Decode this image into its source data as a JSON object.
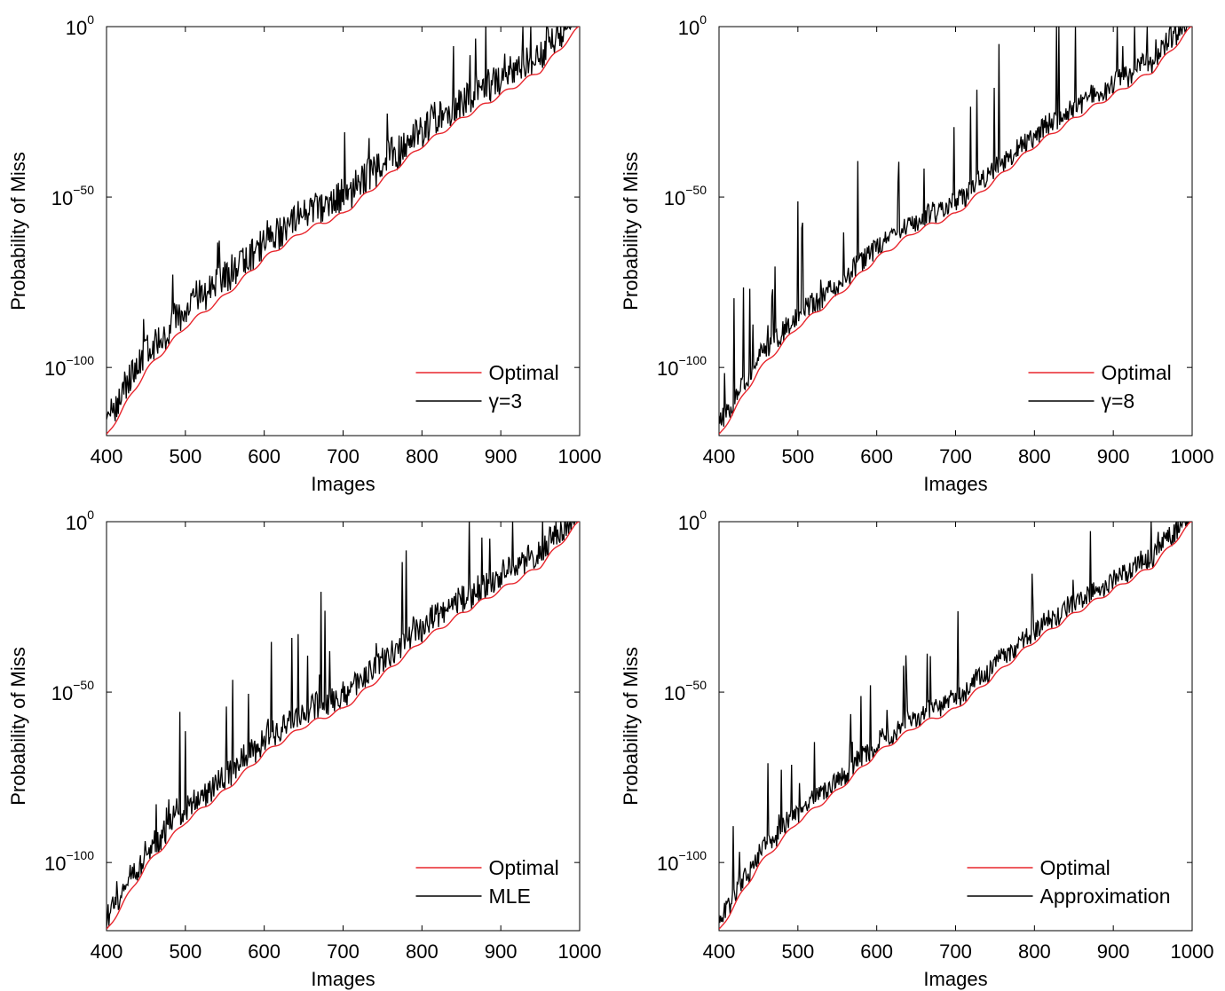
{
  "chart_data": [
    {
      "type": "line",
      "xlabel": "Images",
      "ylabel": "Probability of Miss",
      "xlim": [
        400,
        1000
      ],
      "ylim_log10": [
        -120,
        0
      ],
      "y_scale": "log",
      "xticks": [
        400,
        500,
        600,
        700,
        800,
        900,
        1000
      ],
      "xtick_labels": [
        "400",
        "500",
        "600",
        "700",
        "800",
        "900",
        "1000"
      ],
      "yticks_log10": [
        0,
        -50,
        -100
      ],
      "ytick_labels": [
        {
          "base": "10",
          "exp": "0"
        },
        {
          "base": "10",
          "exp": "−50"
        },
        {
          "base": "10",
          "exp": "−100"
        }
      ],
      "legend_position": "bottom-right",
      "series": [
        {
          "name": "Optimal",
          "color": "#e8262d"
        },
        {
          "name": "γ=3",
          "color": "#000000",
          "noise_amp": 0.35,
          "spike_amp": 22,
          "spike_rate": 0.05
        }
      ],
      "optimal_log10": {
        "x": [
          400,
          450,
          500,
          550,
          600,
          650,
          700,
          750,
          800,
          850,
          900,
          950,
          1000
        ],
        "y": [
          -120,
          -101,
          -88,
          -79,
          -68,
          -60,
          -55,
          -45,
          -35,
          -27,
          -20,
          -13,
          0
        ]
      }
    },
    {
      "type": "line",
      "xlabel": "Images",
      "ylabel": "Probability of Miss",
      "xlim": [
        400,
        1000
      ],
      "ylim_log10": [
        -120,
        0
      ],
      "y_scale": "log",
      "xticks": [
        400,
        500,
        600,
        700,
        800,
        900,
        1000
      ],
      "xtick_labels": [
        "400",
        "500",
        "600",
        "700",
        "800",
        "900",
        "1000"
      ],
      "yticks_log10": [
        0,
        -50,
        -100
      ],
      "ytick_labels": [
        {
          "base": "10",
          "exp": "0"
        },
        {
          "base": "10",
          "exp": "−50"
        },
        {
          "base": "10",
          "exp": "−100"
        }
      ],
      "legend_position": "bottom-right",
      "series": [
        {
          "name": "Optimal",
          "color": "#e8262d"
        },
        {
          "name": "γ=8",
          "color": "#000000",
          "noise_amp": 0.18,
          "spike_amp": 35,
          "spike_rate": 0.06
        }
      ],
      "optimal_log10": {
        "x": [
          400,
          450,
          500,
          550,
          600,
          650,
          700,
          750,
          800,
          850,
          900,
          950,
          1000
        ],
        "y": [
          -120,
          -101,
          -88,
          -79,
          -68,
          -60,
          -55,
          -45,
          -35,
          -27,
          -20,
          -13,
          0
        ]
      }
    },
    {
      "type": "line",
      "xlabel": "Images",
      "ylabel": "Probability of Miss",
      "xlim": [
        400,
        1000
      ],
      "ylim_log10": [
        -120,
        0
      ],
      "y_scale": "log",
      "xticks": [
        400,
        500,
        600,
        700,
        800,
        900,
        1000
      ],
      "xtick_labels": [
        "400",
        "500",
        "600",
        "700",
        "800",
        "900",
        "1000"
      ],
      "yticks_log10": [
        0,
        -50,
        -100
      ],
      "ytick_labels": [
        {
          "base": "10",
          "exp": "0"
        },
        {
          "base": "10",
          "exp": "−50"
        },
        {
          "base": "10",
          "exp": "−100"
        }
      ],
      "legend_position": "bottom-right",
      "series": [
        {
          "name": "Optimal",
          "color": "#e8262d"
        },
        {
          "name": "MLE",
          "color": "#000000",
          "noise_amp": 0.25,
          "spike_amp": 30,
          "spike_rate": 0.06
        }
      ],
      "optimal_log10": {
        "x": [
          400,
          450,
          500,
          550,
          600,
          650,
          700,
          750,
          800,
          850,
          900,
          950,
          1000
        ],
        "y": [
          -120,
          -101,
          -88,
          -79,
          -68,
          -60,
          -55,
          -45,
          -35,
          -27,
          -20,
          -13,
          0
        ]
      }
    },
    {
      "type": "line",
      "xlabel": "Images",
      "ylabel": "Probability of Miss",
      "xlim": [
        400,
        1000
      ],
      "ylim_log10": [
        -120,
        0
      ],
      "y_scale": "log",
      "xticks": [
        400,
        500,
        600,
        700,
        800,
        900,
        1000
      ],
      "xtick_labels": [
        "400",
        "500",
        "600",
        "700",
        "800",
        "900",
        "1000"
      ],
      "yticks_log10": [
        0,
        -50,
        -100
      ],
      "ytick_labels": [
        {
          "base": "10",
          "exp": "0"
        },
        {
          "base": "10",
          "exp": "−50"
        },
        {
          "base": "10",
          "exp": "−100"
        }
      ],
      "legend_position": "bottom-right",
      "series": [
        {
          "name": "Optimal",
          "color": "#e8262d"
        },
        {
          "name": "Approximation",
          "color": "#000000",
          "noise_amp": 0.15,
          "spike_amp": 25,
          "spike_rate": 0.05
        }
      ],
      "optimal_log10": {
        "x": [
          400,
          450,
          500,
          550,
          600,
          650,
          700,
          750,
          800,
          850,
          900,
          950,
          1000
        ],
        "y": [
          -120,
          -101,
          -88,
          -79,
          -68,
          -60,
          -55,
          -45,
          -35,
          -27,
          -20,
          -13,
          0
        ]
      }
    }
  ]
}
